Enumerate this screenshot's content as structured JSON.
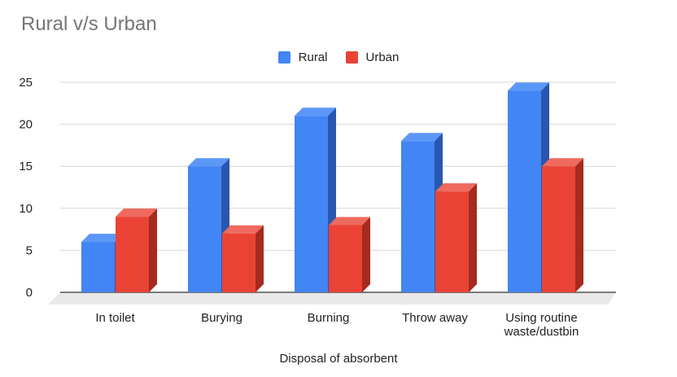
{
  "chart_data": {
    "type": "bar",
    "title": "Rural v/s Urban",
    "xlabel": "Disposal of absorbent",
    "ylabel": "",
    "categories": [
      "In toilet",
      "Burying",
      "Burning",
      "Throw away",
      "Using routine waste/dustbin"
    ],
    "series": [
      {
        "name": "Rural",
        "values": [
          6,
          15,
          21,
          18,
          24
        ],
        "color": "#4285F4",
        "side_color": "#2A56B0",
        "top_color": "#5B97F7"
      },
      {
        "name": "Urban",
        "values": [
          9,
          7,
          8,
          12,
          15
        ],
        "color": "#EA4335",
        "side_color": "#A52A20",
        "top_color": "#EE6A5E"
      }
    ],
    "ylim": [
      0,
      25
    ],
    "yticks": [
      0,
      5,
      10,
      15,
      20,
      25
    ],
    "grid": true,
    "legend_position": "top-center",
    "three_d": true
  }
}
